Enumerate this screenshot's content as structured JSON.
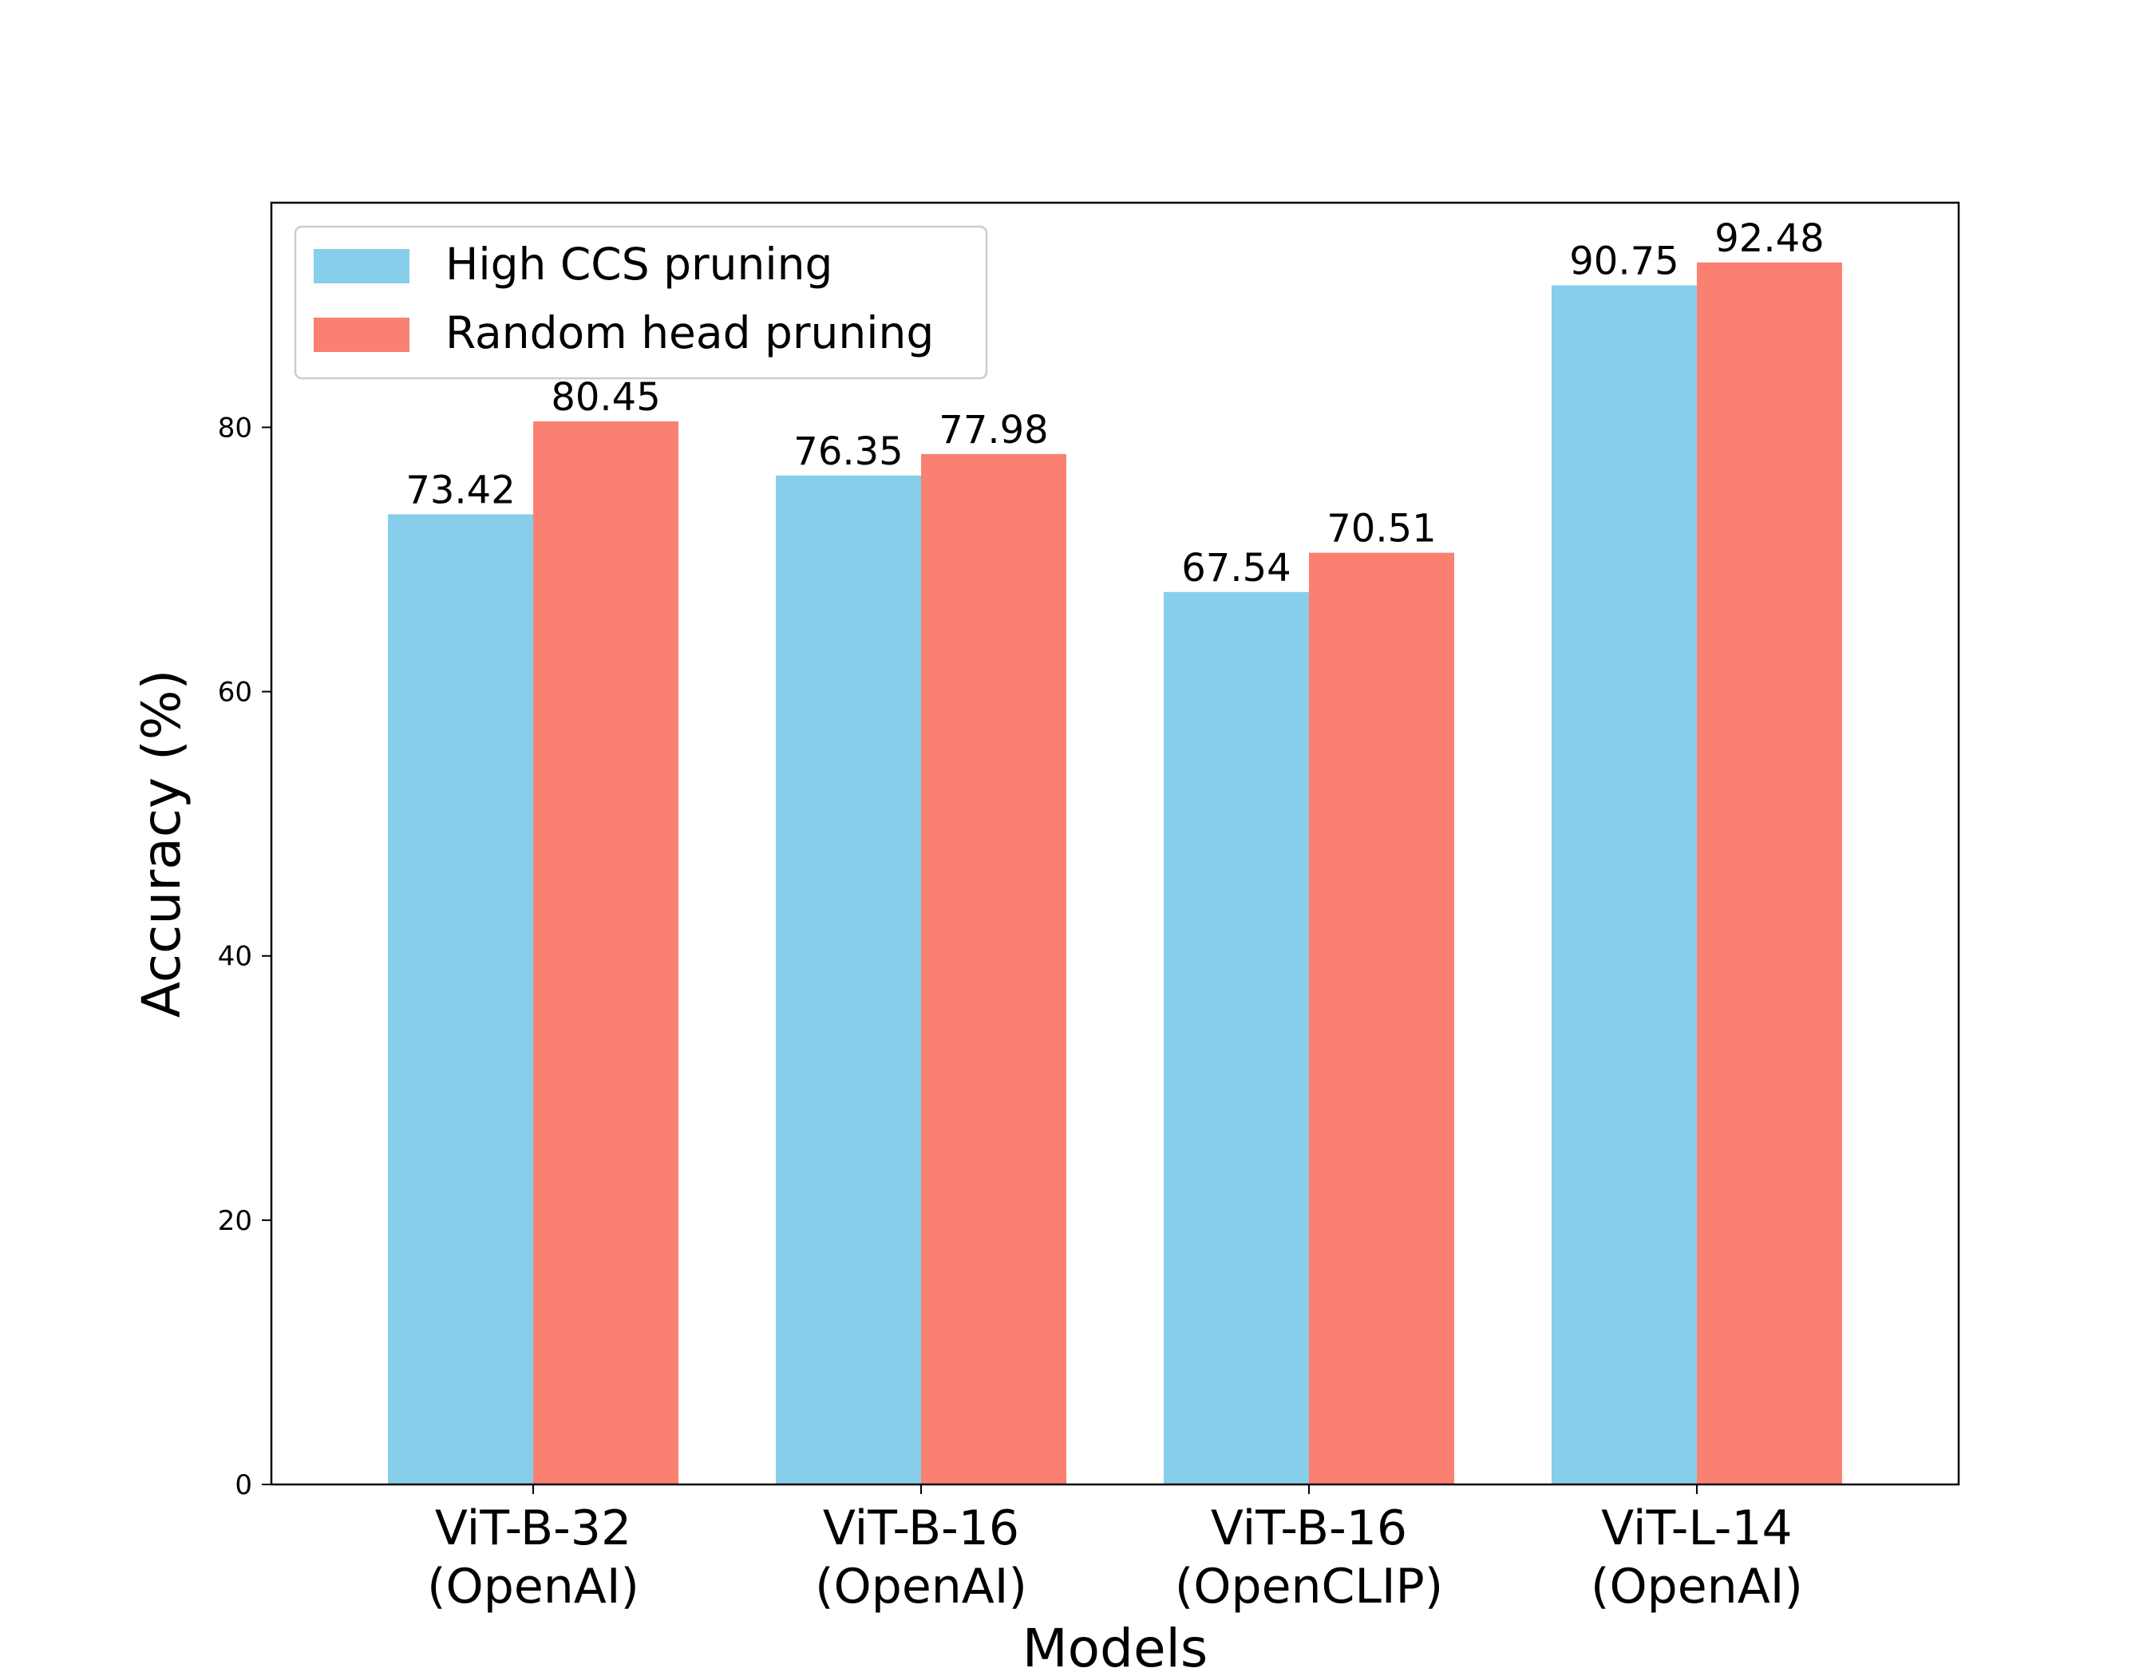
{
  "chart_data": {
    "type": "bar",
    "title": "",
    "xlabel": "Models",
    "ylabel": "Accuracy (%)",
    "ylim": [
      0,
      97
    ],
    "yticks": [
      0,
      20,
      40,
      60,
      80
    ],
    "categories": [
      [
        "ViT-B-32",
        "(OpenAI)"
      ],
      [
        "ViT-B-16",
        "(OpenAI)"
      ],
      [
        "ViT-B-16",
        "(OpenCLIP)"
      ],
      [
        "ViT-L-14",
        "(OpenAI)"
      ]
    ],
    "series": [
      {
        "name": "High CCS pruning",
        "color": "#87CEEB",
        "values": [
          73.42,
          76.35,
          67.54,
          90.75
        ]
      },
      {
        "name": "Random head pruning",
        "color": "#FA8072",
        "values": [
          80.45,
          77.98,
          70.51,
          92.48
        ]
      }
    ],
    "legend_position": "top-left",
    "grid": false
  }
}
